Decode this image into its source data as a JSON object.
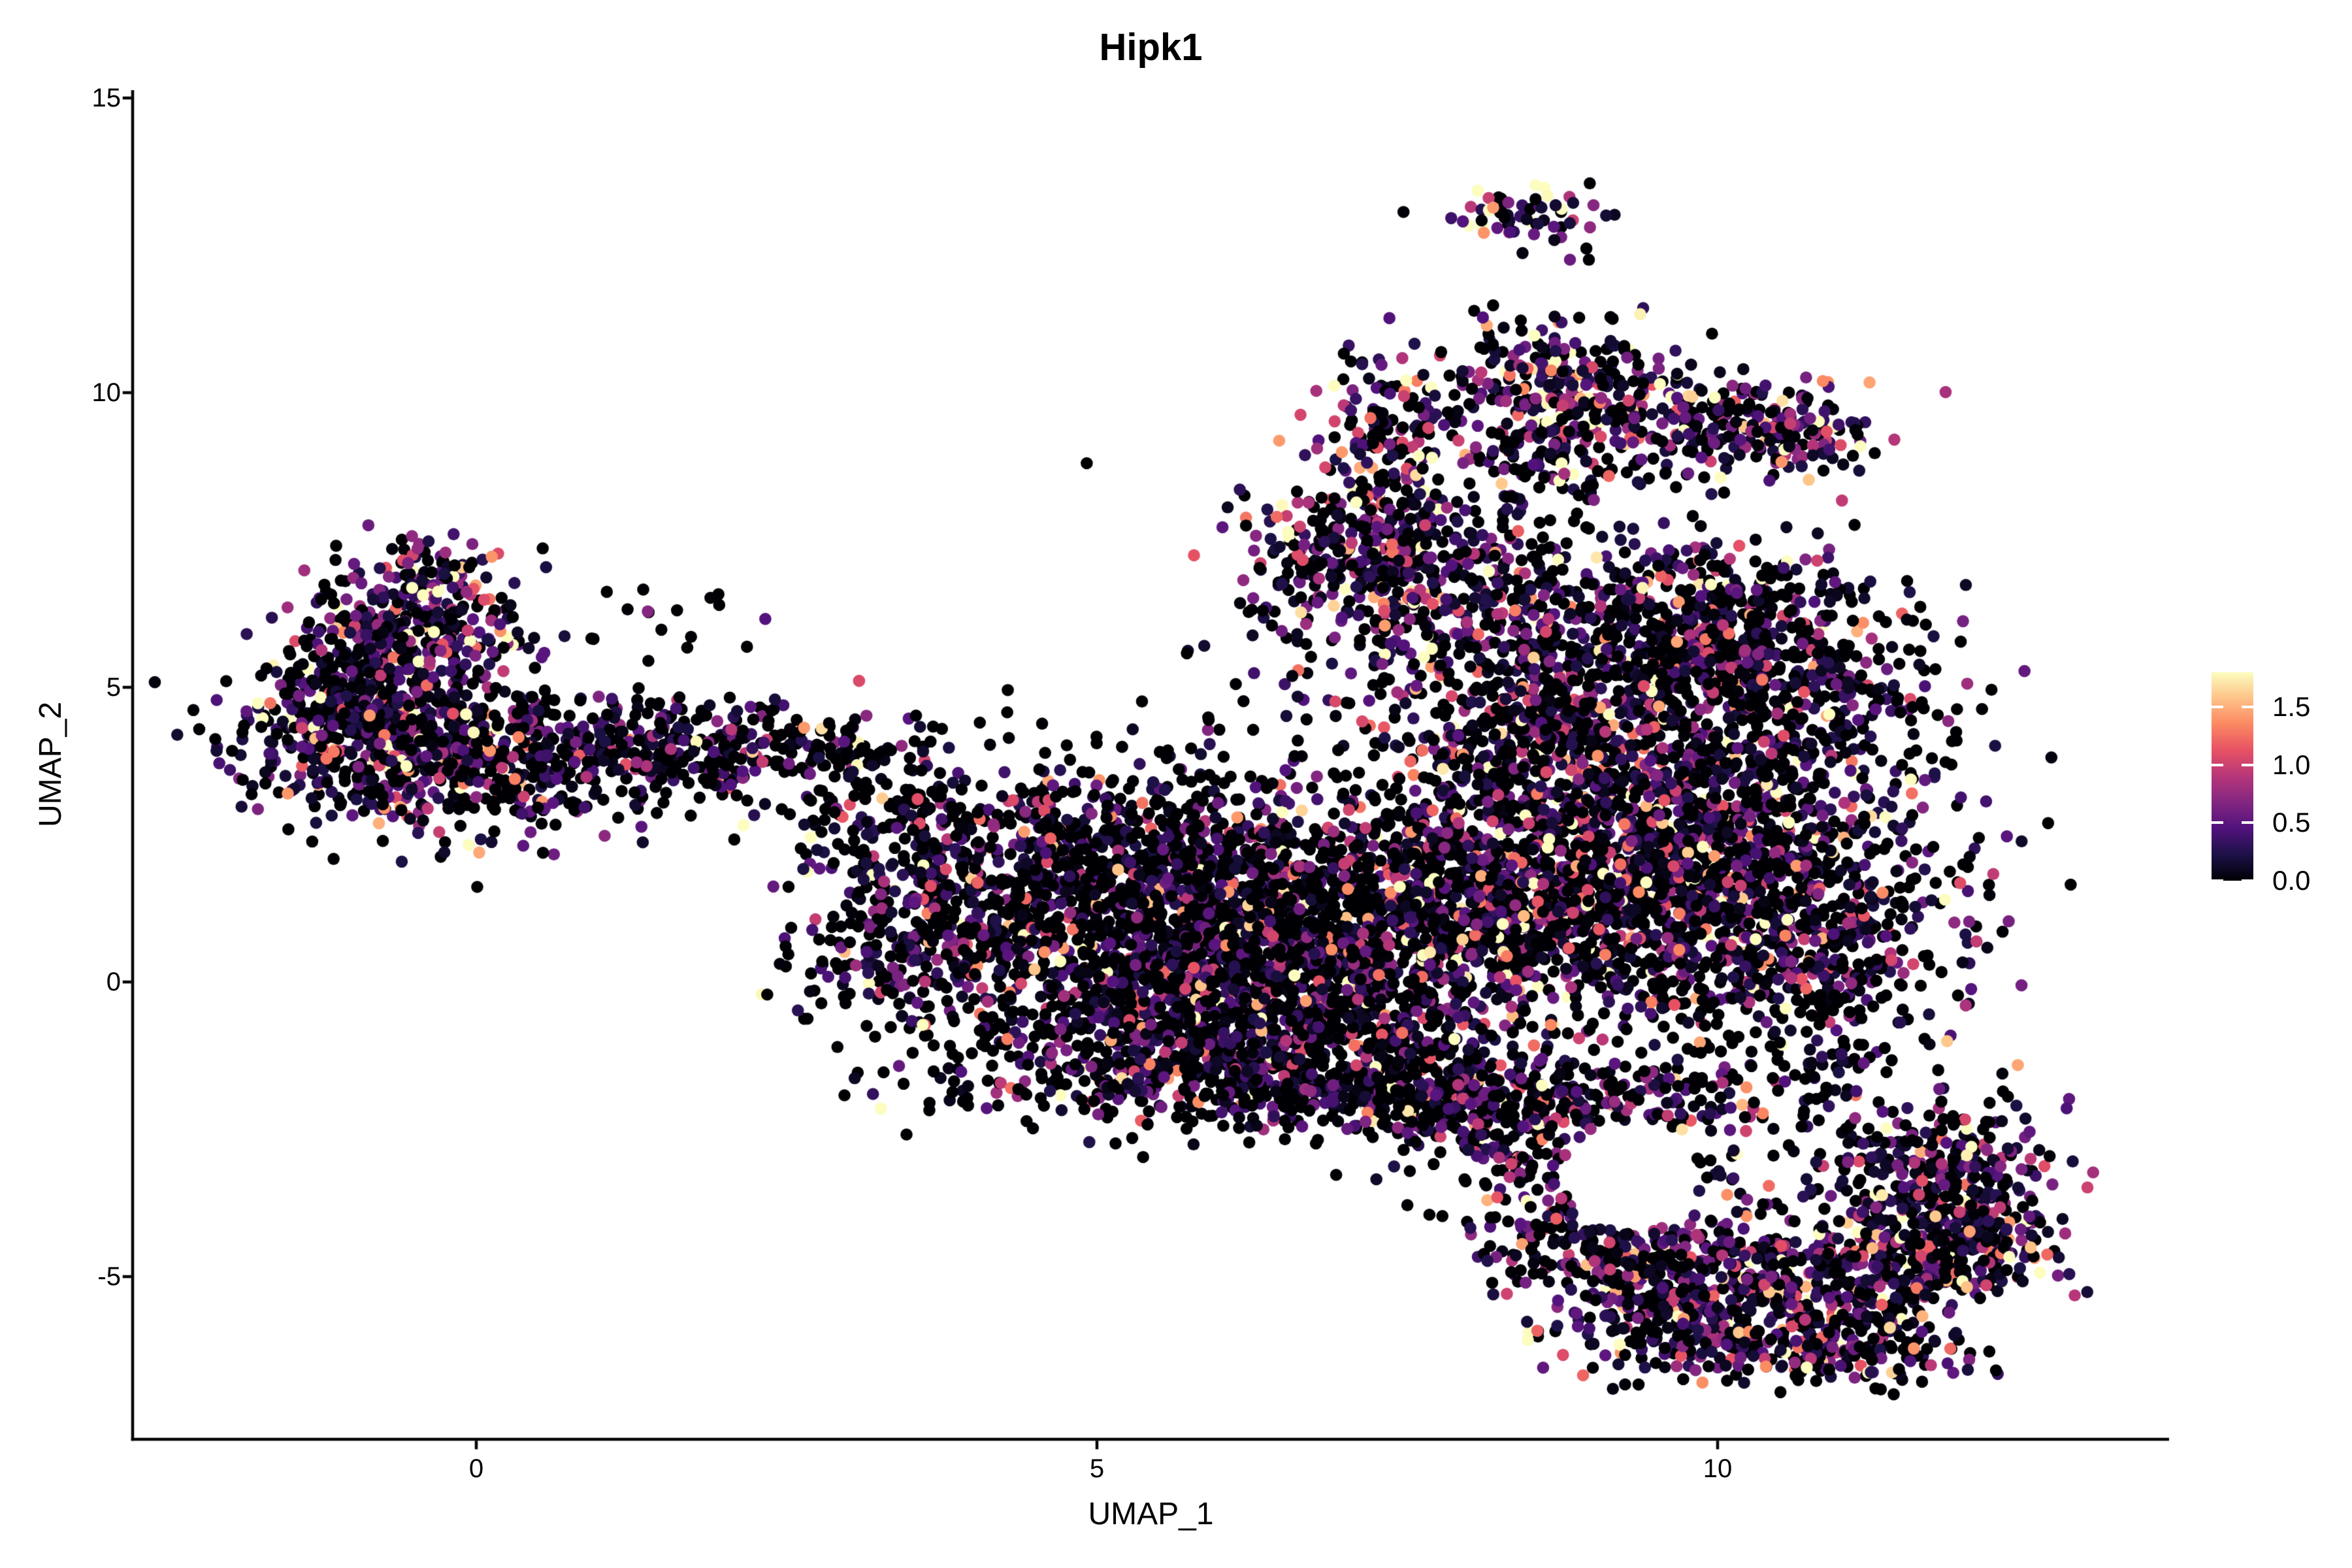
{
  "title": "Hipk1",
  "axes": {
    "x_label": "UMAP_1",
    "y_label": "UMAP_2",
    "x_tick_labels": [
      "0",
      "5",
      "10"
    ],
    "y_tick_labels": [
      "-5",
      "0",
      "5",
      "10",
      "15"
    ]
  },
  "legend": {
    "tick_labels": [
      "1.5",
      "1.0",
      "0.5",
      "0.0"
    ]
  },
  "colors": {
    "background": "#ffffff",
    "axis": "#000000",
    "text": "#000000",
    "legend_tick_mark": "#ffffff",
    "zero_expression_point": "#000004",
    "max_expression_point": "#fcfdbf"
  },
  "colormap": [
    "#000004",
    "#1d1147",
    "#51127c",
    "#822681",
    "#b63679",
    "#e65164",
    "#fb8861",
    "#fec287",
    "#fcfdbf"
  ],
  "chart_data": {
    "type": "scatter",
    "title": "Hipk1",
    "xlabel": "UMAP_1",
    "ylabel": "UMAP_2",
    "x_ticks": [
      0,
      5,
      10
    ],
    "y_ticks": [
      -5,
      0,
      5,
      10,
      15
    ],
    "xlim": [
      -2.8,
      13.7
    ],
    "ylim": [
      -7.8,
      15.1
    ],
    "grid": false,
    "legend_position": "right",
    "color_scale": {
      "min": 0.0,
      "max": 1.8,
      "ticks": [
        0.0,
        0.5,
        1.0,
        1.5
      ],
      "palette": "magma"
    },
    "n_points_estimate": 12600,
    "point_radius_px": 9.3,
    "seed": 42,
    "density": 0.62,
    "clusters": [
      {
        "name": "left-core-west",
        "cx": -0.95,
        "cy": 4.6,
        "sx": 0.5,
        "sy": 0.8,
        "n": 900,
        "p0": 0.4,
        "scale": 0.55
      },
      {
        "name": "left-core-south",
        "cx": 0.05,
        "cy": 3.8,
        "sx": 0.62,
        "sy": 0.6,
        "n": 700,
        "p0": 0.42,
        "scale": 0.55
      },
      {
        "name": "left-upper",
        "cx": -0.4,
        "cy": 6.0,
        "sx": 0.42,
        "sy": 0.55,
        "n": 330,
        "p0": 0.3,
        "scale": 0.7
      },
      {
        "name": "left-apex",
        "cx": -0.35,
        "cy": 6.95,
        "sx": 0.3,
        "sy": 0.3,
        "n": 130,
        "p0": 0.2,
        "scale": 0.9
      },
      {
        "name": "left-fringe-east",
        "cx": 1.35,
        "cy": 3.9,
        "sx": 0.7,
        "sy": 0.55,
        "n": 260,
        "p0": 0.58,
        "scale": 0.45
      },
      {
        "name": "left-upper-strays",
        "cx": 1.4,
        "cy": 6.2,
        "sx": 0.55,
        "sy": 0.5,
        "n": 35,
        "p0": 0.7,
        "scale": 0.4
      },
      {
        "name": "bridge-band",
        "cx": 2.3,
        "cy": 3.95,
        "sx": 0.75,
        "sy": 0.4,
        "n": 300,
        "p0": 0.52,
        "scale": 0.5
      },
      {
        "name": "bridge-mid",
        "cx": 3.3,
        "cy": 3.0,
        "sx": 0.5,
        "sy": 0.5,
        "n": 150,
        "p0": 0.55,
        "scale": 0.5
      },
      {
        "name": "neck",
        "cx": 3.6,
        "cy": 1.85,
        "sx": 0.45,
        "sy": 0.65,
        "n": 220,
        "p0": 0.5,
        "scale": 0.5
      },
      {
        "name": "midleft-blob",
        "cx": 3.62,
        "cy": 0.6,
        "sx": 0.52,
        "sy": 0.62,
        "n": 400,
        "p0": 0.48,
        "scale": 0.52
      },
      {
        "name": "below-neck-strays",
        "cx": 3.95,
        "cy": -1.3,
        "sx": 0.5,
        "sy": 0.65,
        "n": 90,
        "p0": 0.6,
        "scale": 0.45
      },
      {
        "name": "central-nw",
        "cx": 5.3,
        "cy": 1.5,
        "sx": 0.85,
        "sy": 0.75,
        "n": 1150,
        "p0": 0.52,
        "scale": 0.5
      },
      {
        "name": "central-ne",
        "cx": 6.6,
        "cy": 1.1,
        "sx": 0.9,
        "sy": 0.85,
        "n": 1250,
        "p0": 0.5,
        "scale": 0.52
      },
      {
        "name": "central-sw",
        "cx": 5.6,
        "cy": -0.35,
        "sx": 0.85,
        "sy": 0.7,
        "n": 1050,
        "p0": 0.52,
        "scale": 0.5
      },
      {
        "name": "central-se",
        "cx": 6.9,
        "cy": -1.0,
        "sx": 0.8,
        "sy": 0.65,
        "n": 850,
        "p0": 0.5,
        "scale": 0.52
      },
      {
        "name": "central-bottom-band",
        "cx": 6.0,
        "cy": -1.75,
        "sx": 1.0,
        "sy": 0.38,
        "n": 480,
        "p0": 0.52,
        "scale": 0.5
      },
      {
        "name": "central-se-corner",
        "cx": 7.9,
        "cy": -2.1,
        "sx": 0.45,
        "sy": 0.45,
        "n": 250,
        "p0": 0.45,
        "scale": 0.55
      },
      {
        "name": "central-top",
        "cx": 5.1,
        "cy": 2.8,
        "sx": 0.95,
        "sy": 0.55,
        "n": 330,
        "p0": 0.58,
        "scale": 0.48
      },
      {
        "name": "central-top-strays",
        "cx": 5.5,
        "cy": 4.2,
        "sx": 0.8,
        "sy": 0.5,
        "n": 55,
        "p0": 0.72,
        "scale": 0.4
      },
      {
        "name": "inter-mass-neck",
        "cx": 7.5,
        "cy": 1.8,
        "sx": 0.5,
        "sy": 0.9,
        "n": 300,
        "p0": 0.55,
        "scale": 0.5
      },
      {
        "name": "right-core",
        "cx": 9.6,
        "cy": 2.4,
        "sx": 1.05,
        "sy": 1.25,
        "n": 2400,
        "p0": 0.45,
        "scale": 0.55
      },
      {
        "name": "right-west",
        "cx": 8.45,
        "cy": 1.0,
        "sx": 0.75,
        "sy": 0.9,
        "n": 950,
        "p0": 0.48,
        "scale": 0.55
      },
      {
        "name": "right-south",
        "cx": 10.4,
        "cy": 0.5,
        "sx": 0.75,
        "sy": 0.85,
        "n": 800,
        "p0": 0.45,
        "scale": 0.55
      },
      {
        "name": "right-north",
        "cx": 8.7,
        "cy": 4.3,
        "sx": 0.85,
        "sy": 0.85,
        "n": 850,
        "p0": 0.45,
        "scale": 0.58
      },
      {
        "name": "right-nw-wing",
        "cx": 7.6,
        "cy": 6.7,
        "sx": 0.7,
        "sy": 0.85,
        "n": 650,
        "p0": 0.38,
        "scale": 0.62
      },
      {
        "name": "right-nw-dense",
        "cx": 7.15,
        "cy": 7.5,
        "sx": 0.45,
        "sy": 0.5,
        "n": 300,
        "p0": 0.33,
        "scale": 0.7
      },
      {
        "name": "right-ne",
        "cx": 9.4,
        "cy": 6.2,
        "sx": 0.85,
        "sy": 0.75,
        "n": 750,
        "p0": 0.42,
        "scale": 0.58
      },
      {
        "name": "right-ne-shoulder",
        "cx": 10.05,
        "cy": 5.95,
        "sx": 0.55,
        "sy": 0.55,
        "n": 260,
        "p0": 0.45,
        "scale": 0.55
      },
      {
        "name": "right-ne-arm",
        "cx": 10.6,
        "cy": 4.9,
        "sx": 0.65,
        "sy": 0.75,
        "n": 450,
        "p0": 0.45,
        "scale": 0.55
      },
      {
        "name": "chimney",
        "cx": 7.35,
        "cy": 9.4,
        "sx": 0.33,
        "sy": 0.7,
        "n": 230,
        "p0": 0.4,
        "scale": 0.6
      },
      {
        "name": "upper-lobe",
        "cx": 8.75,
        "cy": 10.2,
        "sx": 0.48,
        "sy": 0.6,
        "n": 380,
        "p0": 0.3,
        "scale": 0.68
      },
      {
        "name": "upper-lobe-east",
        "cx": 9.95,
        "cy": 9.55,
        "sx": 0.6,
        "sy": 0.45,
        "n": 320,
        "p0": 0.35,
        "scale": 0.6
      },
      {
        "name": "upper-lobe-east-tip",
        "cx": 10.65,
        "cy": 9.3,
        "sx": 0.33,
        "sy": 0.33,
        "n": 110,
        "p0": 0.35,
        "scale": 0.6
      },
      {
        "name": "lobe-neck",
        "cx": 8.9,
        "cy": 8.9,
        "sx": 0.6,
        "sy": 0.5,
        "n": 250,
        "p0": 0.4,
        "scale": 0.6
      },
      {
        "name": "top-island",
        "cx": 8.5,
        "cy": 13.05,
        "sx": 0.3,
        "sy": 0.24,
        "n": 95,
        "p0": 0.25,
        "scale": 0.8
      },
      {
        "name": "top-island-strays",
        "cx": 8.8,
        "cy": 12.5,
        "sx": 0.15,
        "sy": 0.2,
        "n": 6,
        "p0": 0.5,
        "scale": 0.5
      },
      {
        "name": "wing-top-edge",
        "cx": 8.7,
        "cy": -2.1,
        "sx": 0.7,
        "sy": 0.4,
        "n": 380,
        "p0": 0.4,
        "scale": 0.55
      },
      {
        "name": "wing-band-a",
        "cx": 8.9,
        "cy": -4.3,
        "sx": 0.45,
        "sy": 0.55,
        "n": 250,
        "p0": 0.38,
        "scale": 0.55
      },
      {
        "name": "wing-band-b",
        "cx": 9.8,
        "cy": -4.9,
        "sx": 0.5,
        "sy": 0.5,
        "n": 330,
        "p0": 0.36,
        "scale": 0.58
      },
      {
        "name": "wing-band-c",
        "cx": 10.8,
        "cy": -5.1,
        "sx": 0.55,
        "sy": 0.5,
        "n": 400,
        "p0": 0.36,
        "scale": 0.58
      },
      {
        "name": "wing-band-d",
        "cx": 11.7,
        "cy": -4.7,
        "sx": 0.45,
        "sy": 0.45,
        "n": 330,
        "p0": 0.34,
        "scale": 0.6
      },
      {
        "name": "wing-tip",
        "cx": 12.15,
        "cy": -4.2,
        "sx": 0.32,
        "sy": 0.38,
        "n": 180,
        "p0": 0.34,
        "scale": 0.6
      },
      {
        "name": "wing-bottom",
        "cx": 10.2,
        "cy": -6.1,
        "sx": 0.7,
        "sy": 0.38,
        "n": 280,
        "p0": 0.4,
        "scale": 0.55
      },
      {
        "name": "wing-bottom-east",
        "cx": 11.2,
        "cy": -6.2,
        "sx": 0.45,
        "sy": 0.35,
        "n": 200,
        "p0": 0.38,
        "scale": 0.58
      },
      {
        "name": "wing-sw",
        "cx": 9.4,
        "cy": -5.5,
        "sx": 0.45,
        "sy": 0.55,
        "n": 230,
        "p0": 0.4,
        "scale": 0.55
      },
      {
        "name": "wing-ne",
        "cx": 11.6,
        "cy": -3.4,
        "sx": 0.5,
        "sy": 0.55,
        "n": 320,
        "p0": 0.36,
        "scale": 0.6
      },
      {
        "name": "wing-ne-tip",
        "cx": 12.0,
        "cy": -2.9,
        "sx": 0.35,
        "sy": 0.4,
        "n": 140,
        "p0": 0.36,
        "scale": 0.6
      },
      {
        "name": "wing-hole-sparse",
        "cx": 9.5,
        "cy": -3.3,
        "sx": 0.7,
        "sy": 0.8,
        "n": 90,
        "p0": 0.55,
        "scale": 0.5
      },
      {
        "name": "wing-gap-sparse",
        "cx": 8.2,
        "cy": -3.0,
        "sx": 0.45,
        "sy": 0.5,
        "n": 100,
        "p0": 0.5,
        "scale": 0.5
      },
      {
        "name": "right-south-fringe",
        "cx": 10.6,
        "cy": -1.7,
        "sx": 0.8,
        "sy": 0.45,
        "n": 160,
        "p0": 0.5,
        "scale": 0.5
      }
    ],
    "holes": [
      {
        "cx": 9.3,
        "cy": -3.3,
        "rx": 0.55,
        "ry": 0.95
      }
    ]
  }
}
